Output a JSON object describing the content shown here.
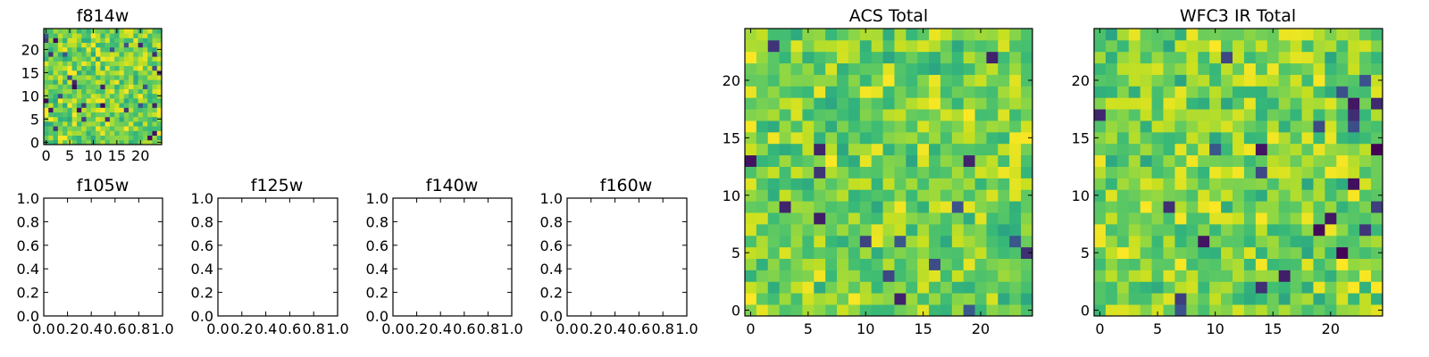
{
  "chart_data": [
    {
      "type": "heatmap",
      "title": "f814w",
      "grid": false,
      "xlim": [
        -0.5,
        24.5
      ],
      "ylim": [
        -0.5,
        24.5
      ],
      "xticks": [
        0,
        5,
        10,
        15,
        20
      ],
      "yticks": [
        0,
        5,
        10,
        15,
        20
      ],
      "xtick_labels": [
        "0",
        "5",
        "10",
        "15",
        "20"
      ],
      "ytick_labels": [
        "0",
        "5",
        "10",
        "15",
        "20"
      ],
      "colormap": "viridis",
      "shape": [
        25,
        25
      ],
      "value_range": [
        0,
        1
      ],
      "seed": 814,
      "values": "random noise (25x25), values not labeled"
    },
    {
      "type": "scatter",
      "title": "f105w",
      "xlim": [
        0,
        1
      ],
      "ylim": [
        0,
        1
      ],
      "xticks": [
        0.0,
        0.2,
        0.4,
        0.6,
        0.8,
        1.0
      ],
      "yticks": [
        0.0,
        0.2,
        0.4,
        0.6,
        0.8,
        1.0
      ],
      "xtick_labels": [
        "0.0",
        "0.2",
        "0.4",
        "0.6",
        "0.8",
        "1.0"
      ],
      "ytick_labels": [
        "0.0",
        "0.2",
        "0.4",
        "0.6",
        "0.8",
        "1.0"
      ],
      "series": []
    },
    {
      "type": "scatter",
      "title": "f125w",
      "xlim": [
        0,
        1
      ],
      "ylim": [
        0,
        1
      ],
      "xticks": [
        0.0,
        0.2,
        0.4,
        0.6,
        0.8,
        1.0
      ],
      "yticks": [
        0.0,
        0.2,
        0.4,
        0.6,
        0.8,
        1.0
      ],
      "xtick_labels": [
        "0.0",
        "0.2",
        "0.4",
        "0.6",
        "0.8",
        "1.0"
      ],
      "ytick_labels": [
        "0.0",
        "0.2",
        "0.4",
        "0.6",
        "0.8",
        "1.0"
      ],
      "series": []
    },
    {
      "type": "scatter",
      "title": "f140w",
      "xlim": [
        0,
        1
      ],
      "ylim": [
        0,
        1
      ],
      "xticks": [
        0.0,
        0.2,
        0.4,
        0.6,
        0.8,
        1.0
      ],
      "yticks": [
        0.0,
        0.2,
        0.4,
        0.6,
        0.8,
        1.0
      ],
      "xtick_labels": [
        "0.0",
        "0.2",
        "0.4",
        "0.6",
        "0.8",
        "1.0"
      ],
      "ytick_labels": [
        "0.0",
        "0.2",
        "0.4",
        "0.6",
        "0.8",
        "1.0"
      ],
      "series": []
    },
    {
      "type": "scatter",
      "title": "f160w",
      "xlim": [
        0,
        1
      ],
      "ylim": [
        0,
        1
      ],
      "xticks": [
        0.0,
        0.2,
        0.4,
        0.6,
        0.8,
        1.0
      ],
      "yticks": [
        0.0,
        0.2,
        0.4,
        0.6,
        0.8,
        1.0
      ],
      "xtick_labels": [
        "0.0",
        "0.2",
        "0.4",
        "0.6",
        "0.8",
        "1.0"
      ],
      "ytick_labels": [
        "0.0",
        "0.2",
        "0.4",
        "0.6",
        "0.8",
        "1.0"
      ],
      "series": []
    },
    {
      "type": "heatmap",
      "title": "ACS Total",
      "grid": false,
      "xlim": [
        -0.5,
        24.5
      ],
      "ylim": [
        -0.5,
        24.5
      ],
      "xticks": [
        0,
        5,
        10,
        15,
        20
      ],
      "yticks": [
        0,
        5,
        10,
        15,
        20
      ],
      "xtick_labels": [
        "0",
        "5",
        "10",
        "15",
        "20"
      ],
      "ytick_labels": [
        "0",
        "5",
        "10",
        "15",
        "20"
      ],
      "colormap": "viridis",
      "shape": [
        25,
        25
      ],
      "value_range": [
        0,
        1
      ],
      "seed": 4242,
      "values": "random noise (25x25), values not labeled"
    },
    {
      "type": "heatmap",
      "title": "WFC3 IR Total",
      "grid": false,
      "xlim": [
        -0.5,
        24.5
      ],
      "ylim": [
        -0.5,
        24.5
      ],
      "xticks": [
        0,
        5,
        10,
        15,
        20
      ],
      "yticks": [
        0,
        5,
        10,
        15,
        20
      ],
      "xtick_labels": [
        "0",
        "5",
        "10",
        "15",
        "20"
      ],
      "ytick_labels": [
        "0",
        "5",
        "10",
        "15",
        "20"
      ],
      "colormap": "viridis",
      "shape": [
        25,
        25
      ],
      "value_range": [
        0,
        1
      ],
      "seed": 9091,
      "values": "random noise (25x25), values not labeled"
    }
  ]
}
